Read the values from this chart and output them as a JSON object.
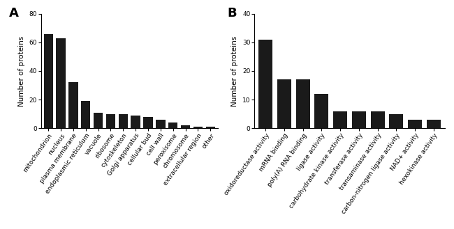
{
  "panel_A": {
    "categories": [
      "mitochondrion",
      "nucleus",
      "plasma membrane",
      "endoplasmic reticulum",
      "vacuole",
      "ribosome",
      "cytoskeleton",
      "Golgi apparatus",
      "cellular bud",
      "cell wall",
      "peroxisome",
      "chromosome",
      "extracellular region",
      "other"
    ],
    "values": [
      66,
      63,
      32,
      19,
      11,
      10,
      10,
      9,
      8,
      6,
      4,
      2,
      1,
      1
    ],
    "ylabel": "Number of proteins",
    "label": "A",
    "ylim": [
      0,
      80
    ],
    "yticks": [
      0,
      20,
      40,
      60,
      80
    ]
  },
  "panel_B": {
    "categories": [
      "oxidoreductase activity",
      "mRNA binding",
      "poly(A) RNA binding",
      "ligase activity",
      "carbohydrate kinase activity",
      "transferase activity",
      "transaminase activity",
      "carbon-nitrogen ligase activity",
      "NAD+ activity",
      "hexokinase activity"
    ],
    "values": [
      31,
      17,
      17,
      12,
      6,
      6,
      6,
      5,
      3,
      3
    ],
    "ylabel": "Number of proteins",
    "label": "B",
    "ylim": [
      0,
      40
    ],
    "yticks": [
      0,
      10,
      20,
      30,
      40
    ]
  },
  "bar_color": "#1a1a1a",
  "bg_color": "#ffffff",
  "tick_label_fontsize": 6.5,
  "ylabel_fontsize": 7.5,
  "panel_label_fontsize": 13
}
